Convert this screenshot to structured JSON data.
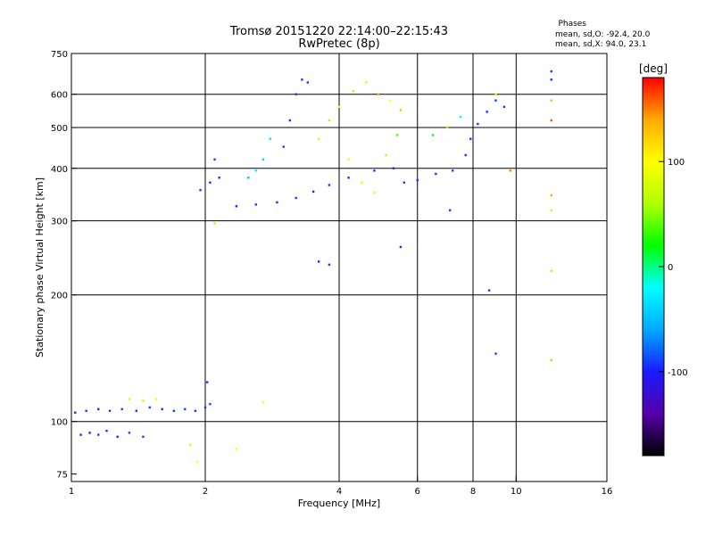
{
  "title_line1": "Tromsø 20151220 22:14:00–22:15:43",
  "title_line2": "RwPretec (8p)",
  "phases": {
    "title": "Phases",
    "line_o": "mean, sd,O: -92.4, 20.0",
    "line_x": "mean, sd,X:  94.0, 23.1"
  },
  "chart_data": {
    "type": "scatter",
    "xlabel": "Frequency [MHz]",
    "ylabel": "Stationary phase Virtual Height [km]",
    "xscale": "log",
    "yscale": "log",
    "xlim": [
      1,
      16
    ],
    "ylim": [
      72,
      750
    ],
    "xticks": [
      1,
      2,
      4,
      6,
      8,
      10,
      16
    ],
    "yticks": [
      75,
      100,
      200,
      300,
      400,
      500,
      600,
      750
    ],
    "xgrid": [
      2,
      4,
      6,
      8,
      10
    ],
    "ygrid": [
      100,
      200,
      300,
      400,
      500,
      600
    ],
    "colorbar": {
      "label": "[deg]",
      "range": [
        -180,
        180
      ],
      "ticks": [
        100,
        0,
        -100
      ],
      "colors": [
        "#000000",
        "#5500aa",
        "#1a1aff",
        "#00aaff",
        "#00ffff",
        "#00ff00",
        "#b0ff00",
        "#ffff00",
        "#ffaa00",
        "#ff0000"
      ]
    },
    "series": [
      {
        "values": [
          {
            "f": 1.05,
            "h": 93,
            "p": -95
          },
          {
            "f": 1.1,
            "h": 94,
            "p": -98
          },
          {
            "f": 1.15,
            "h": 93,
            "p": -90
          },
          {
            "f": 1.2,
            "h": 95,
            "p": -92
          },
          {
            "f": 1.27,
            "h": 92,
            "p": -96
          },
          {
            "f": 1.35,
            "h": 94,
            "p": -90
          },
          {
            "f": 1.45,
            "h": 92,
            "p": -88
          },
          {
            "f": 1.02,
            "h": 105,
            "p": -95
          },
          {
            "f": 1.08,
            "h": 106,
            "p": -90
          },
          {
            "f": 1.15,
            "h": 107,
            "p": -96
          },
          {
            "f": 1.22,
            "h": 106,
            "p": -92
          },
          {
            "f": 1.3,
            "h": 107,
            "p": -88
          },
          {
            "f": 1.4,
            "h": 106,
            "p": -94
          },
          {
            "f": 1.5,
            "h": 108,
            "p": -90
          },
          {
            "f": 1.6,
            "h": 107,
            "p": -96
          },
          {
            "f": 1.7,
            "h": 106,
            "p": -92
          },
          {
            "f": 1.8,
            "h": 107,
            "p": -90
          },
          {
            "f": 1.9,
            "h": 106,
            "p": -94
          },
          {
            "f": 2.0,
            "h": 108,
            "p": -92
          },
          {
            "f": 2.05,
            "h": 110,
            "p": -85
          },
          {
            "f": 1.35,
            "h": 113,
            "p": 80
          },
          {
            "f": 1.45,
            "h": 112,
            "p": 70
          },
          {
            "f": 1.55,
            "h": 113,
            "p": 90
          },
          {
            "f": 2.7,
            "h": 111,
            "p": 100
          },
          {
            "f": 2.02,
            "h": 124,
            "p": -95
          },
          {
            "f": 1.85,
            "h": 88,
            "p": 110
          },
          {
            "f": 1.92,
            "h": 80,
            "p": 100
          },
          {
            "f": 2.35,
            "h": 86,
            "p": 100
          },
          {
            "f": 1.95,
            "h": 355,
            "p": -90
          },
          {
            "f": 2.05,
            "h": 370,
            "p": -95
          },
          {
            "f": 2.1,
            "h": 420,
            "p": -90
          },
          {
            "f": 2.15,
            "h": 380,
            "p": -95
          },
          {
            "f": 2.1,
            "h": 296,
            "p": 120
          },
          {
            "f": 2.35,
            "h": 325,
            "p": -95
          },
          {
            "f": 2.6,
            "h": 328,
            "p": -92
          },
          {
            "f": 2.9,
            "h": 332,
            "p": -95
          },
          {
            "f": 3.2,
            "h": 340,
            "p": -90
          },
          {
            "f": 3.5,
            "h": 352,
            "p": -96
          },
          {
            "f": 3.8,
            "h": 365,
            "p": -92
          },
          {
            "f": 4.2,
            "h": 380,
            "p": -95
          },
          {
            "f": 4.8,
            "h": 395,
            "p": -94
          },
          {
            "f": 5.3,
            "h": 400,
            "p": -96
          },
          {
            "f": 5.6,
            "h": 370,
            "p": -92
          },
          {
            "f": 6.0,
            "h": 375,
            "p": -95
          },
          {
            "f": 6.6,
            "h": 388,
            "p": -92
          },
          {
            "f": 7.2,
            "h": 395,
            "p": -90
          },
          {
            "f": 7.7,
            "h": 430,
            "p": -94
          },
          {
            "f": 7.9,
            "h": 470,
            "p": -92
          },
          {
            "f": 8.2,
            "h": 510,
            "p": -90
          },
          {
            "f": 8.6,
            "h": 545,
            "p": -95
          },
          {
            "f": 9.0,
            "h": 580,
            "p": -92
          },
          {
            "f": 3.0,
            "h": 450,
            "p": -92
          },
          {
            "f": 3.1,
            "h": 520,
            "p": -95
          },
          {
            "f": 3.2,
            "h": 600,
            "p": -90
          },
          {
            "f": 3.3,
            "h": 650,
            "p": -94
          },
          {
            "f": 3.4,
            "h": 640,
            "p": -92
          },
          {
            "f": 2.7,
            "h": 420,
            "p": -40
          },
          {
            "f": 2.8,
            "h": 470,
            "p": -30
          },
          {
            "f": 2.5,
            "h": 380,
            "p": -50
          },
          {
            "f": 2.6,
            "h": 395,
            "p": -30
          },
          {
            "f": 3.6,
            "h": 470,
            "p": 70
          },
          {
            "f": 3.8,
            "h": 520,
            "p": 60
          },
          {
            "f": 4.0,
            "h": 560,
            "p": 100
          },
          {
            "f": 4.3,
            "h": 610,
            "p": 120
          },
          {
            "f": 4.6,
            "h": 640,
            "p": 110
          },
          {
            "f": 4.9,
            "h": 600,
            "p": 140
          },
          {
            "f": 5.2,
            "h": 580,
            "p": 100
          },
          {
            "f": 5.5,
            "h": 550,
            "p": 130
          },
          {
            "f": 4.2,
            "h": 420,
            "p": 90
          },
          {
            "f": 4.5,
            "h": 370,
            "p": 80
          },
          {
            "f": 4.8,
            "h": 350,
            "p": 90
          },
          {
            "f": 5.1,
            "h": 430,
            "p": 60
          },
          {
            "f": 5.4,
            "h": 480,
            "p": 40
          },
          {
            "f": 6.5,
            "h": 480,
            "p": 10
          },
          {
            "f": 7.0,
            "h": 500,
            "p": 60
          },
          {
            "f": 7.5,
            "h": 530,
            "p": -20
          },
          {
            "f": 3.6,
            "h": 240,
            "p": -95
          },
          {
            "f": 3.8,
            "h": 236,
            "p": -92
          },
          {
            "f": 5.5,
            "h": 260,
            "p": -95
          },
          {
            "f": 8.7,
            "h": 205,
            "p": -95
          },
          {
            "f": 9.0,
            "h": 145,
            "p": -90
          },
          {
            "f": 9.7,
            "h": 395,
            "p": 150
          },
          {
            "f": 12.0,
            "h": 680,
            "p": -90
          },
          {
            "f": 12.0,
            "h": 650,
            "p": -95
          },
          {
            "f": 12.0,
            "h": 580,
            "p": 130
          },
          {
            "f": 12.0,
            "h": 520,
            "p": 160
          },
          {
            "f": 12.0,
            "h": 345,
            "p": 140
          },
          {
            "f": 12.0,
            "h": 318,
            "p": 110
          },
          {
            "f": 12.0,
            "h": 228,
            "p": 120
          },
          {
            "f": 12.0,
            "h": 140,
            "p": 130
          },
          {
            "f": 7.1,
            "h": 318,
            "p": -90
          },
          {
            "f": 9.0,
            "h": 600,
            "p": 110
          },
          {
            "f": 9.4,
            "h": 560,
            "p": -90
          }
        ]
      }
    ]
  }
}
